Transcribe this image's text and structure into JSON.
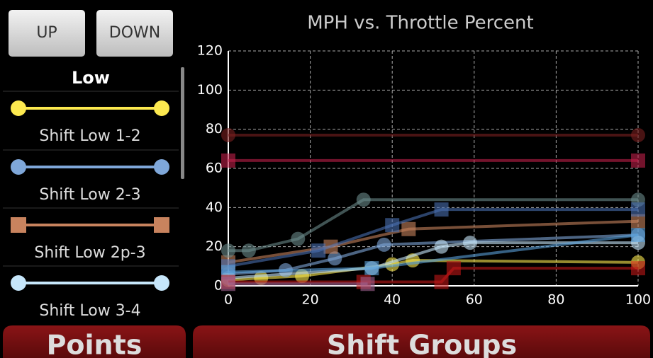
{
  "buttons": [
    "UP",
    "DOWN"
  ],
  "legend_title": "Low",
  "tabs": [
    "Points",
    "Shift Groups"
  ],
  "chart_data": {
    "type": "line",
    "title": "MPH vs. Throttle Percent",
    "xlim": [
      0,
      100
    ],
    "xticks": [
      0,
      20,
      40,
      60,
      80,
      100
    ],
    "ylim": [
      0,
      120
    ],
    "yticks": [
      0,
      20,
      40,
      60,
      80,
      100,
      120
    ],
    "grid": true,
    "series": [
      {
        "name": "Shift Low 1-2",
        "color": "#fce94f",
        "marker": "circle",
        "x": [
          0,
          8,
          18,
          40,
          45,
          100
        ],
        "values": [
          3,
          4,
          5,
          11,
          13,
          12
        ]
      },
      {
        "name": "Shift Low 2-3",
        "color": "#7fa7d9",
        "marker": "circle",
        "x": [
          0,
          14,
          26,
          38,
          100
        ],
        "values": [
          6,
          8,
          14,
          21,
          26
        ]
      },
      {
        "name": "Shift Low 2p-3",
        "color": "#c8835e",
        "marker": "square",
        "x": [
          0,
          25,
          44,
          100
        ],
        "values": [
          12,
          20,
          29,
          33
        ]
      },
      {
        "name": "Shift Low 3-4",
        "color": "#c6e6fa",
        "marker": "circle",
        "x": [
          0,
          35,
          52,
          59,
          100
        ],
        "values": [
          4,
          9,
          20,
          22,
          22
        ]
      },
      {
        "color": "#7a2020",
        "marker": "circle",
        "x": [
          0,
          100
        ],
        "values": [
          77,
          77
        ]
      },
      {
        "color": "#c0204a",
        "marker": "square",
        "x": [
          0,
          100
        ],
        "values": [
          64,
          64
        ]
      },
      {
        "color": "#6a8a8a",
        "marker": "circle",
        "x": [
          0,
          5,
          17,
          33,
          100
        ],
        "values": [
          18,
          18,
          24,
          44,
          44
        ]
      },
      {
        "color": "#4a6fb0",
        "marker": "square",
        "x": [
          0,
          22,
          40,
          52,
          100
        ],
        "values": [
          10,
          18,
          31,
          39,
          39
        ]
      },
      {
        "color": "#5aa0d8",
        "marker": "square",
        "x": [
          0,
          35,
          100
        ],
        "values": [
          7,
          9,
          26
        ]
      },
      {
        "color": "#c01818",
        "marker": "square",
        "x": [
          0,
          33,
          52,
          55,
          100
        ],
        "values": [
          2,
          2,
          2,
          9,
          9
        ]
      },
      {
        "color": "#a06090",
        "marker": "square",
        "x": [
          0,
          34
        ],
        "values": [
          1,
          1
        ]
      }
    ]
  }
}
